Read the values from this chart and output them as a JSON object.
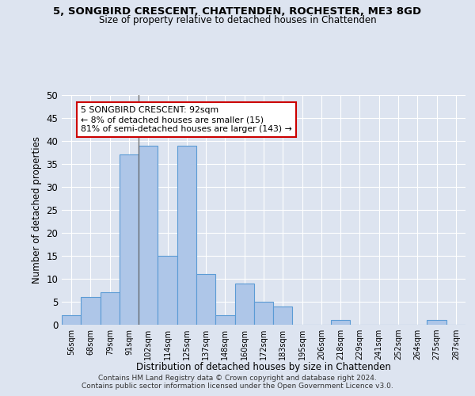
{
  "title": "5, SONGBIRD CRESCENT, CHATTENDEN, ROCHESTER, ME3 8GD",
  "subtitle": "Size of property relative to detached houses in Chattenden",
  "xlabel": "Distribution of detached houses by size in Chattenden",
  "ylabel": "Number of detached properties",
  "bar_labels": [
    "56sqm",
    "68sqm",
    "79sqm",
    "91sqm",
    "102sqm",
    "114sqm",
    "125sqm",
    "137sqm",
    "148sqm",
    "160sqm",
    "172sqm",
    "183sqm",
    "195sqm",
    "206sqm",
    "218sqm",
    "229sqm",
    "241sqm",
    "252sqm",
    "264sqm",
    "275sqm",
    "287sqm"
  ],
  "bar_values": [
    2,
    6,
    7,
    37,
    39,
    15,
    39,
    11,
    2,
    9,
    5,
    4,
    0,
    0,
    1,
    0,
    0,
    0,
    0,
    1,
    0
  ],
  "bar_color": "#aec6e8",
  "bar_edge_color": "#5b9bd5",
  "annotation_line1": "5 SONGBIRD CRESCENT: 92sqm",
  "annotation_line2": "← 8% of detached houses are smaller (15)",
  "annotation_line3": "81% of semi-detached houses are larger (143) →",
  "annotation_box_color": "#ffffff",
  "annotation_box_border_color": "#cc0000",
  "vline_x": 3.5,
  "ylim": [
    0,
    50
  ],
  "yticks": [
    0,
    5,
    10,
    15,
    20,
    25,
    30,
    35,
    40,
    45,
    50
  ],
  "background_color": "#dde4f0",
  "grid_color": "#ffffff",
  "footer_line1": "Contains HM Land Registry data © Crown copyright and database right 2024.",
  "footer_line2": "Contains public sector information licensed under the Open Government Licence v3.0."
}
